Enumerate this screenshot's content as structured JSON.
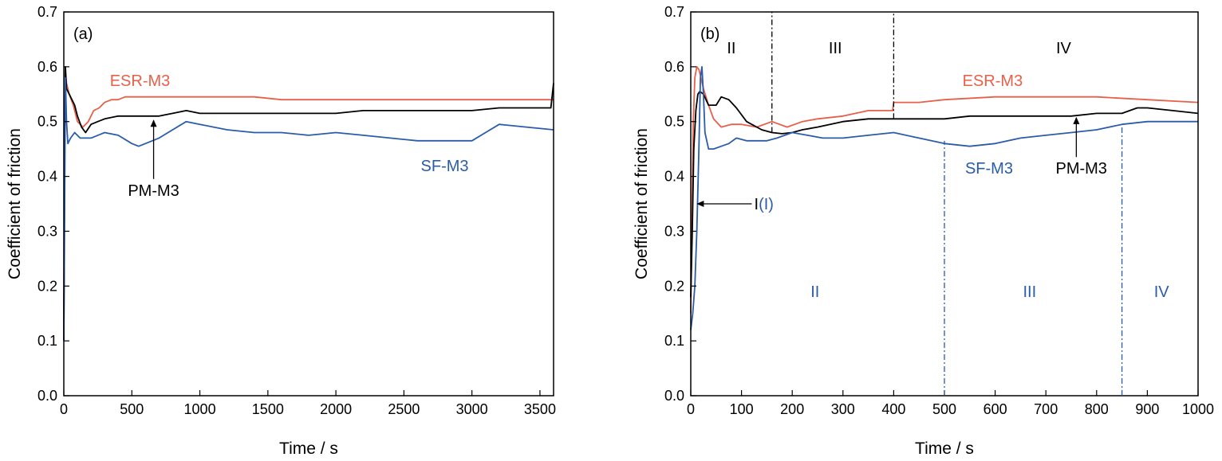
{
  "colors": {
    "ESR-M3": "#e8604a",
    "PM-M3": "#000000",
    "SF-M3": "#2a5caa"
  },
  "chart_data": [
    {
      "type": "line",
      "panel_label": "(a)",
      "xlabel": "Time / s",
      "ylabel": "Coefficient of friction",
      "xlim": [
        0,
        3600
      ],
      "ylim": [
        0,
        0.7
      ],
      "xticks": [
        0,
        500,
        1000,
        1500,
        2000,
        2500,
        3000,
        3500
      ],
      "yticks": [
        "0.0",
        "0.1",
        "0.2",
        "0.3",
        "0.4",
        "0.5",
        "0.6",
        "0.7"
      ],
      "grid": false,
      "series": [
        {
          "name": "ESR-M3",
          "color": "#e8604a",
          "x": [
            0,
            5,
            12,
            20,
            40,
            70,
            100,
            140,
            180,
            220,
            260,
            300,
            350,
            400,
            450,
            500,
            600,
            700,
            800,
            900,
            1000,
            1200,
            1400,
            1600,
            1800,
            2000,
            2200,
            2400,
            2600,
            2800,
            3000,
            3200,
            3400,
            3600
          ],
          "y": [
            0.15,
            0.45,
            0.59,
            0.57,
            0.55,
            0.53,
            0.5,
            0.49,
            0.5,
            0.52,
            0.525,
            0.535,
            0.54,
            0.54,
            0.545,
            0.545,
            0.545,
            0.545,
            0.545,
            0.545,
            0.545,
            0.545,
            0.545,
            0.54,
            0.54,
            0.54,
            0.54,
            0.54,
            0.54,
            0.54,
            0.54,
            0.54,
            0.54,
            0.54
          ]
        },
        {
          "name": "PM-M3",
          "color": "#000000",
          "x": [
            0,
            5,
            12,
            20,
            40,
            60,
            80,
            100,
            130,
            160,
            200,
            250,
            300,
            400,
            500,
            600,
            700,
            800,
            900,
            1000,
            1200,
            1400,
            1600,
            1800,
            2000,
            2200,
            2400,
            2600,
            2800,
            3000,
            3200,
            3400,
            3580,
            3600
          ],
          "y": [
            0.1,
            0.4,
            0.6,
            0.56,
            0.55,
            0.54,
            0.53,
            0.51,
            0.49,
            0.48,
            0.495,
            0.5,
            0.505,
            0.51,
            0.51,
            0.51,
            0.51,
            0.515,
            0.52,
            0.515,
            0.515,
            0.515,
            0.515,
            0.515,
            0.515,
            0.52,
            0.52,
            0.52,
            0.52,
            0.52,
            0.525,
            0.525,
            0.525,
            0.57
          ]
        },
        {
          "name": "SF-M3",
          "color": "#2a5caa",
          "x": [
            0,
            5,
            12,
            20,
            30,
            50,
            80,
            120,
            160,
            200,
            300,
            400,
            500,
            550,
            600,
            700,
            800,
            900,
            1000,
            1200,
            1400,
            1600,
            1800,
            2000,
            2200,
            2400,
            2600,
            2800,
            3000,
            3100,
            3200,
            3400,
            3600
          ],
          "y": [
            0.1,
            0.3,
            0.58,
            0.5,
            0.46,
            0.47,
            0.48,
            0.47,
            0.47,
            0.47,
            0.48,
            0.475,
            0.46,
            0.455,
            0.46,
            0.47,
            0.485,
            0.5,
            0.495,
            0.485,
            0.48,
            0.48,
            0.475,
            0.48,
            0.475,
            0.47,
            0.465,
            0.465,
            0.465,
            0.48,
            0.495,
            0.49,
            0.485
          ]
        }
      ],
      "annotations": [
        {
          "text": "ESR-M3",
          "color": "#e8604a",
          "x": 560,
          "y": 0.575
        },
        {
          "text": "PM-M3",
          "color": "#000000",
          "x": 660,
          "y": 0.375,
          "arrow_to": [
            660,
            0.505
          ]
        },
        {
          "text": "SF-M3",
          "color": "#2a5caa",
          "x": 2800,
          "y": 0.42
        }
      ]
    },
    {
      "type": "line",
      "panel_label": "(b)",
      "xlabel": "Time / s",
      "ylabel": "Coefficient of friction",
      "xlim": [
        0,
        1000
      ],
      "ylim": [
        0,
        0.7
      ],
      "xticks": [
        0,
        100,
        200,
        300,
        400,
        500,
        600,
        700,
        800,
        900,
        1000
      ],
      "yticks": [
        "0.0",
        "0.1",
        "0.2",
        "0.3",
        "0.4",
        "0.5",
        "0.6",
        "0.7"
      ],
      "grid": false,
      "series": [
        {
          "name": "ESR-M3",
          "color": "#e8604a",
          "x": [
            0,
            2,
            5,
            8,
            12,
            16,
            20,
            25,
            35,
            45,
            60,
            80,
            100,
            130,
            160,
            190,
            220,
            250,
            300,
            350,
            398,
            400,
            450,
            500,
            600,
            700,
            800,
            900,
            1000
          ],
          "y": [
            0.15,
            0.3,
            0.5,
            0.58,
            0.6,
            0.595,
            0.58,
            0.56,
            0.53,
            0.505,
            0.49,
            0.495,
            0.495,
            0.49,
            0.5,
            0.49,
            0.5,
            0.505,
            0.51,
            0.52,
            0.52,
            0.535,
            0.535,
            0.54,
            0.545,
            0.545,
            0.545,
            0.54,
            0.535
          ]
        },
        {
          "name": "PM-M3",
          "color": "#000000",
          "x": [
            0,
            3,
            6,
            10,
            14,
            18,
            25,
            35,
            50,
            60,
            75,
            90,
            110,
            140,
            160,
            180,
            200,
            220,
            250,
            300,
            350,
            400,
            450,
            500,
            550,
            600,
            650,
            700,
            750,
            800,
            850,
            880,
            900,
            950,
            1000
          ],
          "y": [
            0.18,
            0.3,
            0.45,
            0.52,
            0.55,
            0.555,
            0.55,
            0.53,
            0.53,
            0.545,
            0.54,
            0.525,
            0.5,
            0.485,
            0.48,
            0.478,
            0.48,
            0.485,
            0.49,
            0.5,
            0.505,
            0.505,
            0.505,
            0.505,
            0.51,
            0.51,
            0.51,
            0.51,
            0.51,
            0.515,
            0.515,
            0.525,
            0.525,
            0.52,
            0.515
          ]
        },
        {
          "name": "SF-M3",
          "color": "#2a5caa",
          "x": [
            0,
            4,
            8,
            12,
            16,
            19,
            22,
            25,
            28,
            35,
            45,
            60,
            75,
            90,
            110,
            130,
            150,
            170,
            200,
            230,
            260,
            300,
            350,
            400,
            450,
            500,
            550,
            600,
            650,
            700,
            750,
            800,
            850,
            900,
            950,
            1000
          ],
          "y": [
            0.12,
            0.15,
            0.2,
            0.3,
            0.45,
            0.58,
            0.6,
            0.55,
            0.48,
            0.45,
            0.45,
            0.455,
            0.46,
            0.47,
            0.465,
            0.465,
            0.465,
            0.47,
            0.48,
            0.475,
            0.47,
            0.47,
            0.475,
            0.48,
            0.47,
            0.46,
            0.455,
            0.46,
            0.47,
            0.475,
            0.48,
            0.485,
            0.495,
            0.5,
            0.5,
            0.5
          ]
        }
      ],
      "region_lines": [
        {
          "x": 160,
          "y0": 0.48,
          "y1": 0.7,
          "color": "#000000"
        },
        {
          "x": 400,
          "y0": 0.505,
          "y1": 0.7,
          "color": "#000000"
        },
        {
          "x": 500,
          "y0": 0.0,
          "y1": 0.465,
          "color": "#2a5caa"
        },
        {
          "x": 850,
          "y0": 0.0,
          "y1": 0.49,
          "color": "#2a5caa"
        }
      ],
      "stage_labels": [
        {
          "text": "II",
          "color": "#000000",
          "x": 80,
          "y": 0.635
        },
        {
          "text": "III",
          "color": "#000000",
          "x": 285,
          "y": 0.635
        },
        {
          "text": "IV",
          "color": "#000000",
          "x": 735,
          "y": 0.635
        },
        {
          "text": "II",
          "color": "#2a5caa",
          "x": 245,
          "y": 0.19
        },
        {
          "text": "III",
          "color": "#2a5caa",
          "x": 668,
          "y": 0.19
        },
        {
          "text": "IV",
          "color": "#2a5caa",
          "x": 928,
          "y": 0.19
        }
      ],
      "annotations": [
        {
          "text": "ESR-M3",
          "color": "#e8604a",
          "x": 595,
          "y": 0.575
        },
        {
          "text": "SF-M3",
          "color": "#2a5caa",
          "x": 588,
          "y": 0.415
        },
        {
          "text": "PM-M3",
          "color": "#000000",
          "x": 770,
          "y": 0.415,
          "arrow_to": [
            760,
            0.51
          ]
        }
      ],
      "stage_one_label": {
        "text_black": "I",
        "text_blue": "(I)",
        "x": 125,
        "y": 0.35,
        "arrow_to": [
          10,
          0.35
        ]
      }
    }
  ]
}
